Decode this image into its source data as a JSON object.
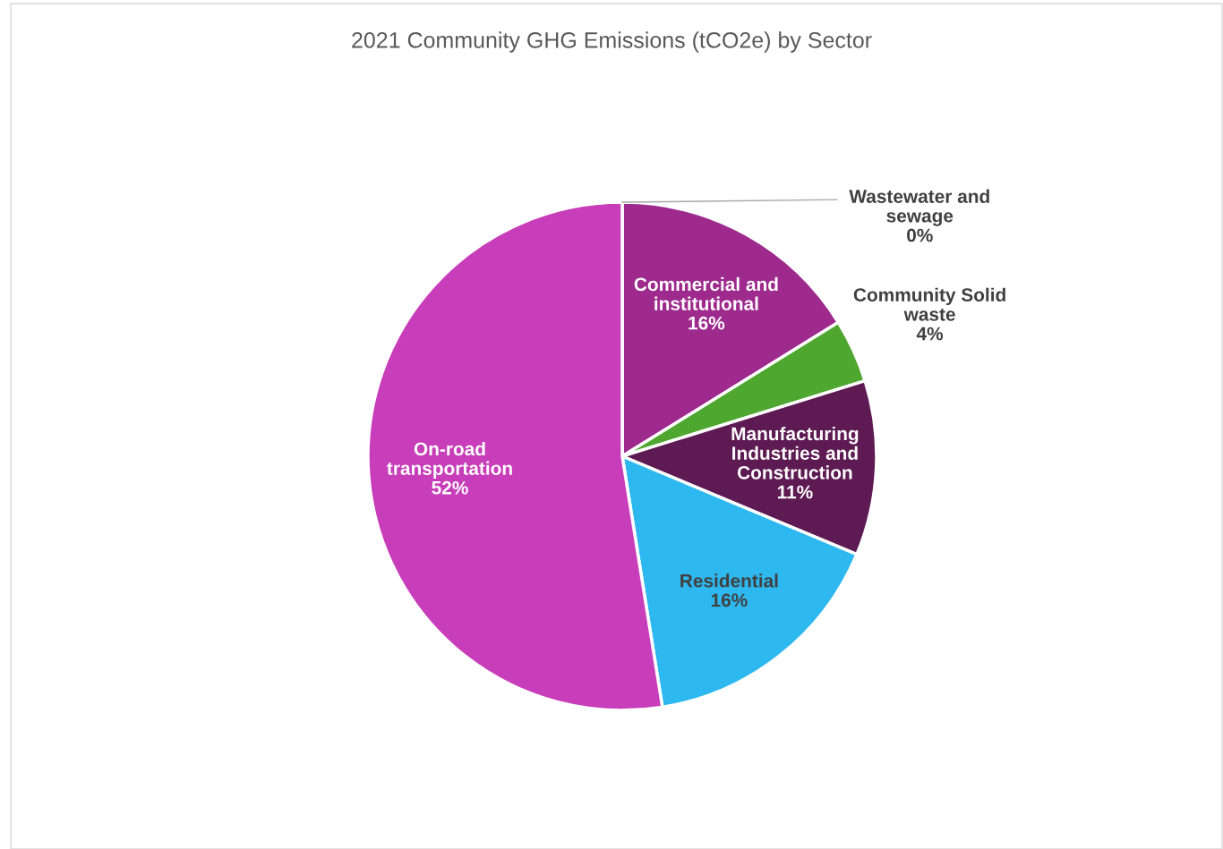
{
  "chart_data": {
    "type": "pie",
    "title": "2021 Community GHG Emissions (tCO2e) by Sector",
    "categories": [
      "Wastewater and\nsewage",
      "Commercial and\ninstitutional",
      "Community Solid\nwaste",
      "Manufacturing\nIndustries and\nConstruction",
      "Residential",
      "On-road\ntransportation"
    ],
    "values": [
      0,
      16,
      4,
      11,
      16,
      52
    ],
    "value_labels": [
      "0%",
      "16%",
      "4%",
      "11%",
      "16%",
      "52%"
    ],
    "colors": [
      "#7f7f7f",
      "#9e2a8e",
      "#4ea72e",
      "#5e1a52",
      "#2db8ef",
      "#c83db9"
    ],
    "legend": false
  }
}
